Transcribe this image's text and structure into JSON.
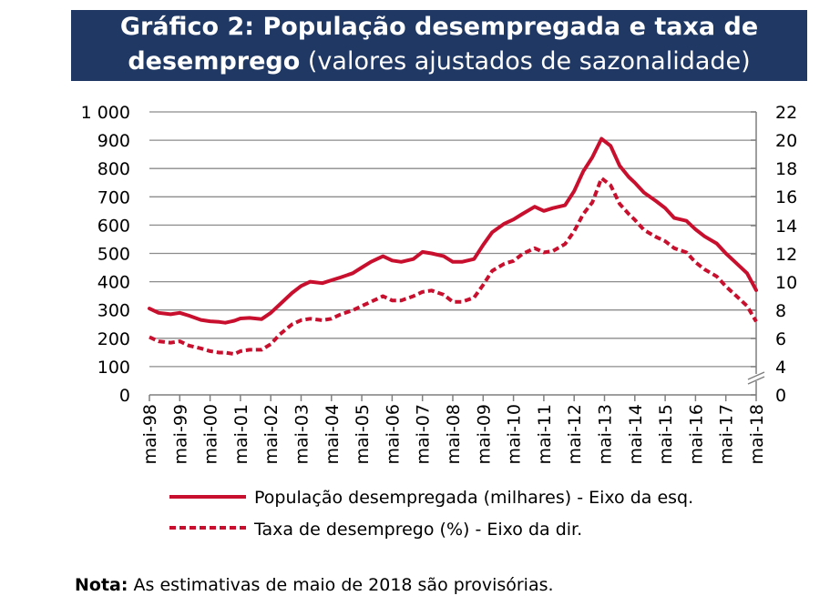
{
  "title": {
    "bold_line1": "Gráfico 2: População desempregada e taxa de",
    "bold_line2": "desemprego",
    "normal_line2": " (valores ajustados de sazonalidade)"
  },
  "chart_data": {
    "type": "line",
    "left_axis": {
      "min": 0,
      "max": 1000,
      "ticks": [
        0,
        100,
        200,
        300,
        400,
        500,
        600,
        700,
        800,
        900,
        1000
      ],
      "tick_labels": [
        "0",
        "100",
        "200",
        "300",
        "400",
        "500",
        "600",
        "700",
        "800",
        "900",
        "1 000"
      ]
    },
    "right_axis": {
      "ticks": [
        0,
        4,
        6,
        8,
        10,
        12,
        14,
        16,
        18,
        20,
        22
      ],
      "tick_labels": [
        "0",
        "4",
        "6",
        "8",
        "10",
        "12",
        "14",
        "16",
        "18",
        "20",
        "22"
      ],
      "break_between": [
        0,
        4
      ]
    },
    "x_labels": [
      "mai-98",
      "mai-99",
      "mai-00",
      "mai-01",
      "mai-02",
      "mai-03",
      "mai-04",
      "mai-05",
      "mai-06",
      "mai-07",
      "mai-08",
      "mai-09",
      "mai-10",
      "mai-11",
      "mai-12",
      "mai-13",
      "mai-14",
      "mai-15",
      "mai-16",
      "mai-17",
      "mai-18"
    ],
    "x_start": 1998.0,
    "x_end": 2018.0,
    "grid": true,
    "series": [
      {
        "name": "População desempregada (milhares) - Eixo da esq.",
        "axis": "left",
        "style": "solid",
        "color": "#c8102e",
        "x": [
          1998.0,
          1998.3,
          1998.7,
          1999.0,
          1999.3,
          1999.7,
          2000.0,
          2000.3,
          2000.5,
          2000.8,
          2001.0,
          2001.3,
          2001.7,
          2002.0,
          2002.3,
          2002.7,
          2003.0,
          2003.3,
          2003.7,
          2004.0,
          2004.3,
          2004.7,
          2005.0,
          2005.3,
          2005.7,
          2006.0,
          2006.3,
          2006.7,
          2007.0,
          2007.3,
          2007.7,
          2008.0,
          2008.3,
          2008.7,
          2009.0,
          2009.3,
          2009.7,
          2010.0,
          2010.3,
          2010.7,
          2011.0,
          2011.3,
          2011.7,
          2012.0,
          2012.3,
          2012.6,
          2012.9,
          2013.2,
          2013.5,
          2013.8,
          2014.0,
          2014.3,
          2014.7,
          2015.0,
          2015.3,
          2015.7,
          2016.0,
          2016.3,
          2016.7,
          2017.0,
          2017.3,
          2017.7,
          2018.0
        ],
        "values": [
          305,
          290,
          285,
          290,
          280,
          265,
          260,
          258,
          255,
          262,
          270,
          272,
          268,
          290,
          320,
          360,
          385,
          400,
          395,
          405,
          415,
          430,
          450,
          470,
          490,
          475,
          470,
          480,
          505,
          500,
          490,
          470,
          470,
          480,
          530,
          575,
          605,
          620,
          640,
          665,
          650,
          660,
          670,
          720,
          790,
          840,
          905,
          880,
          810,
          770,
          750,
          715,
          685,
          660,
          625,
          615,
          585,
          560,
          535,
          500,
          470,
          430,
          370
        ]
      },
      {
        "name": "Taxa de desemprego (%) - Eixo da dir.",
        "axis": "right",
        "style": "dashed",
        "color": "#c8102e",
        "x": [
          1998.0,
          1998.3,
          1998.7,
          1999.0,
          1999.3,
          1999.7,
          2000.0,
          2000.3,
          2000.5,
          2000.8,
          2001.0,
          2001.3,
          2001.7,
          2002.0,
          2002.3,
          2002.7,
          2003.0,
          2003.3,
          2003.7,
          2004.0,
          2004.3,
          2004.7,
          2005.0,
          2005.3,
          2005.7,
          2006.0,
          2006.3,
          2006.7,
          2007.0,
          2007.3,
          2007.7,
          2008.0,
          2008.3,
          2008.7,
          2009.0,
          2009.3,
          2009.7,
          2010.0,
          2010.3,
          2010.7,
          2011.0,
          2011.3,
          2011.7,
          2012.0,
          2012.3,
          2012.6,
          2012.9,
          2013.2,
          2013.5,
          2013.8,
          2014.0,
          2014.3,
          2014.7,
          2015.0,
          2015.3,
          2015.7,
          2016.0,
          2016.3,
          2016.7,
          2017.0,
          2017.3,
          2017.7,
          2018.0
        ],
        "values": [
          6.1,
          5.8,
          5.7,
          5.8,
          5.5,
          5.3,
          5.1,
          5.0,
          5.0,
          4.9,
          5.1,
          5.2,
          5.2,
          5.6,
          6.3,
          7.0,
          7.3,
          7.4,
          7.3,
          7.4,
          7.7,
          8.0,
          8.3,
          8.6,
          9.0,
          8.7,
          8.7,
          9.0,
          9.3,
          9.4,
          9.1,
          8.6,
          8.6,
          8.9,
          9.8,
          10.8,
          11.3,
          11.5,
          12.0,
          12.4,
          12.1,
          12.2,
          12.7,
          13.6,
          14.8,
          15.6,
          17.3,
          16.8,
          15.5,
          14.8,
          14.4,
          13.7,
          13.2,
          12.9,
          12.4,
          12.1,
          11.4,
          10.9,
          10.4,
          9.7,
          9.1,
          8.3,
          7.2
        ]
      }
    ]
  },
  "legend": {
    "solid_label": "População desempregada (milhares) - Eixo da esq.",
    "dashed_label": "Taxa de desemprego (%) - Eixo da dir."
  },
  "note": {
    "label": "Nota:",
    "text": " As estimativas de maio de 2018 são provisórias."
  }
}
